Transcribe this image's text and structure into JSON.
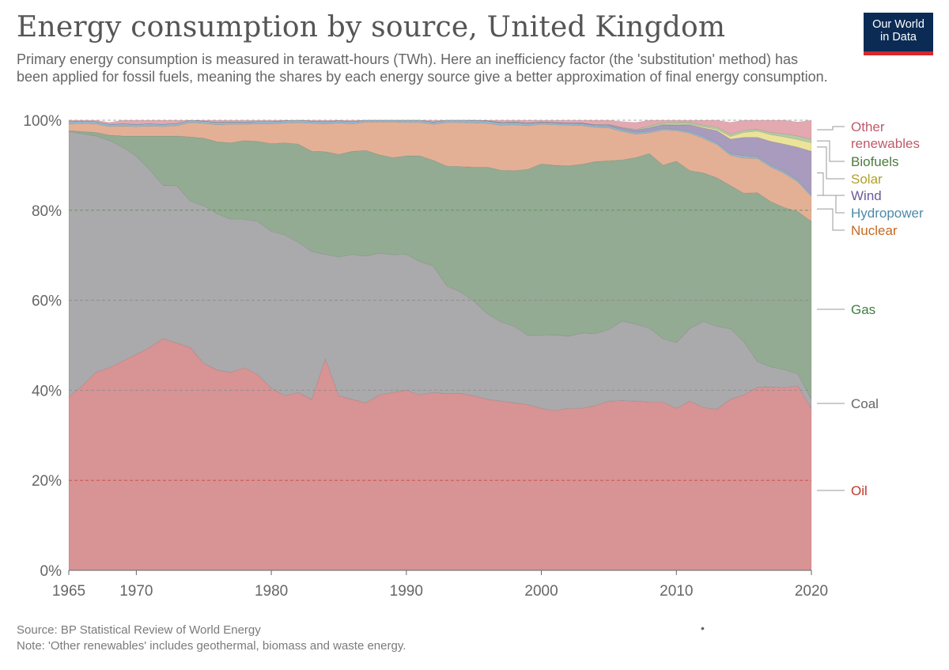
{
  "title": "Energy consumption by source, United Kingdom",
  "subtitle": "Primary energy consumption is measured in terawatt-hours (TWh). Here an inefficiency factor (the 'substitution' method) has been applied for fossil fuels, meaning the shares by each energy source give a better approximation of final energy consumption.",
  "logo": {
    "line1": "Our World",
    "line2": "in Data"
  },
  "footer": {
    "source": "Source: BP Statistical Review of World Energy",
    "note": "Note: 'Other renewables' includes geothermal, biomass and waste energy.",
    "dot": "•"
  },
  "chart_data": {
    "type": "area",
    "stacked": true,
    "title": "Energy consumption by source, United Kingdom",
    "xlabel": "",
    "ylabel": "",
    "xlim": [
      1965,
      2020
    ],
    "ylim": [
      0,
      100
    ],
    "y_ticks": [
      "0%",
      "20%",
      "40%",
      "60%",
      "80%",
      "100%"
    ],
    "x_ticks": [
      "1965",
      "1970",
      "1980",
      "1990",
      "2000",
      "2010",
      "2020"
    ],
    "grid": "horizontal dashed",
    "legend_placement": "right",
    "x": [
      1965,
      1966,
      1967,
      1968,
      1969,
      1970,
      1971,
      1972,
      1973,
      1974,
      1975,
      1976,
      1977,
      1978,
      1979,
      1980,
      1981,
      1982,
      1983,
      1984,
      1985,
      1986,
      1987,
      1988,
      1989,
      1990,
      1991,
      1992,
      1993,
      1994,
      1995,
      1996,
      1997,
      1998,
      1999,
      2000,
      2001,
      2002,
      2003,
      2004,
      2005,
      2006,
      2007,
      2008,
      2009,
      2010,
      2011,
      2012,
      2013,
      2014,
      2015,
      2016,
      2017,
      2018,
      2019,
      2020
    ],
    "series": [
      {
        "name": "Oil",
        "color": "#d89394",
        "label_color": "#c0392b",
        "values": [
          38.5,
          41,
          44,
          45,
          46.5,
          48,
          49.5,
          51.5,
          50.5,
          49.5,
          46,
          44.5,
          44,
          45,
          43.5,
          40.5,
          38.8,
          39.5,
          38,
          47,
          38.8,
          38,
          37.2,
          39,
          39.5,
          40,
          39,
          39.5,
          39.3,
          39.3,
          38.8,
          38,
          37.6,
          37.2,
          36.8,
          36,
          35.5,
          36,
          36,
          36.6,
          37.6,
          37.7,
          37.6,
          37.4,
          37.4,
          36,
          37.6,
          36.2,
          35.8,
          38,
          39,
          40.7,
          40.8,
          40.6,
          41,
          36
        ]
      },
      {
        "name": "Coal",
        "color": "#aaaaac",
        "label_color": "#666666",
        "values": [
          59,
          56,
          52.5,
          50.5,
          47.5,
          44,
          39.5,
          34,
          35,
          32.5,
          35,
          34.7,
          34,
          33,
          34,
          34.8,
          35.7,
          33.4,
          32.8,
          23.2,
          30.8,
          32.2,
          32.6,
          31.5,
          30.6,
          30.2,
          29.6,
          28.1,
          23.9,
          22.6,
          21,
          19,
          17.6,
          17,
          15.4,
          16.2,
          16.8,
          16,
          16.7,
          16,
          15.9,
          17.7,
          17.1,
          16.4,
          14.1,
          14.6,
          16.1,
          19.1,
          18.4,
          15.7,
          11.8,
          5.7,
          4.4,
          4,
          2.6,
          2
        ]
      },
      {
        "name": "Gas",
        "color": "#93ab92",
        "label_color": "#3f7d3f",
        "values": [
          0.2,
          0.5,
          0.8,
          1.2,
          2.5,
          4.5,
          7.5,
          11,
          11,
          14.3,
          15,
          16,
          17,
          17.5,
          17.8,
          19.5,
          20.5,
          21.8,
          22.3,
          22.8,
          22.8,
          22.9,
          23.5,
          21.8,
          21.6,
          21.9,
          23.5,
          23.5,
          26.6,
          27.8,
          29.8,
          32.6,
          33.7,
          34.6,
          36.9,
          38.1,
          37.7,
          37.9,
          37.5,
          38.2,
          37.5,
          35.8,
          37,
          38.8,
          38.5,
          40.3,
          35.1,
          33,
          33,
          31.8,
          33,
          37.5,
          36.7,
          36,
          36.1,
          39.5
        ]
      },
      {
        "name": "Nuclear",
        "color": "#e3b096",
        "label_color": "#c46a24",
        "values": [
          1.5,
          1.8,
          1.9,
          1.9,
          2.2,
          2.1,
          2.2,
          2.1,
          2.3,
          3.2,
          3.3,
          3.8,
          4.1,
          3.6,
          3.9,
          4.4,
          4.4,
          4.8,
          6.2,
          6.2,
          7,
          6.1,
          6.3,
          7.3,
          7.9,
          7.4,
          7.4,
          8,
          9.7,
          9.8,
          9.8,
          9.7,
          10,
          10.2,
          9.7,
          8.8,
          9,
          9,
          8.6,
          7.6,
          7.3,
          6.3,
          5.2,
          4.6,
          7.8,
          6.8,
          8.3,
          7.7,
          7.4,
          6.7,
          7.8,
          7.6,
          7.7,
          7.6,
          6.6,
          5.6
        ]
      },
      {
        "name": "Hydropower",
        "color": "#94b7cd",
        "label_color": "#4d8aa8",
        "values": [
          0.5,
          0.5,
          0.5,
          0.5,
          0.5,
          0.5,
          0.5,
          0.5,
          0.5,
          0.5,
          0.5,
          0.5,
          0.5,
          0.5,
          0.5,
          0.5,
          0.5,
          0.5,
          0.5,
          0.5,
          0.5,
          0.5,
          0.5,
          0.5,
          0.5,
          0.5,
          0.5,
          0.5,
          0.5,
          0.5,
          0.5,
          0.5,
          0.5,
          0.5,
          0.5,
          0.4,
          0.4,
          0.4,
          0.4,
          0.4,
          0.4,
          0.4,
          0.4,
          0.4,
          0.4,
          0.3,
          0.4,
          0.4,
          0.4,
          0.4,
          0.5,
          0.4,
          0.4,
          0.4,
          0.4,
          0.4
        ]
      },
      {
        "name": "Wind",
        "color": "#a89bbd",
        "label_color": "#6b5a99",
        "values": [
          0,
          0,
          0,
          0,
          0,
          0,
          0,
          0,
          0,
          0,
          0,
          0,
          0,
          0,
          0,
          0,
          0,
          0,
          0,
          0,
          0,
          0,
          0,
          0,
          0,
          0,
          0,
          0,
          0,
          0,
          0.1,
          0.1,
          0.1,
          0.1,
          0.1,
          0.1,
          0.1,
          0.1,
          0.2,
          0.2,
          0.3,
          0.4,
          0.5,
          0.7,
          0.8,
          0.9,
          1.5,
          1.9,
          2.7,
          3.2,
          4.1,
          4.3,
          5.3,
          6.1,
          7.3,
          9.6
        ]
      },
      {
        "name": "Solar",
        "color": "#ece39a",
        "label_color": "#b0a02a",
        "values": [
          0,
          0,
          0,
          0,
          0,
          0,
          0,
          0,
          0,
          0,
          0,
          0,
          0,
          0,
          0,
          0,
          0,
          0,
          0,
          0,
          0,
          0,
          0,
          0,
          0,
          0,
          0,
          0,
          0,
          0,
          0,
          0,
          0,
          0,
          0,
          0,
          0,
          0,
          0,
          0,
          0,
          0,
          0,
          0,
          0,
          0,
          0.1,
          0.2,
          0.3,
          0.6,
          1.1,
          1.4,
          1.5,
          1.6,
          1.7,
          1.9
        ]
      },
      {
        "name": "Biofuels",
        "color": "#b5c9a5",
        "label_color": "#4c7a3c",
        "values": [
          0,
          0,
          0,
          0,
          0,
          0,
          0,
          0,
          0,
          0,
          0,
          0,
          0,
          0,
          0,
          0,
          0,
          0,
          0,
          0,
          0,
          0,
          0,
          0,
          0,
          0,
          0,
          0,
          0,
          0,
          0,
          0,
          0,
          0,
          0,
          0,
          0,
          0,
          0,
          0,
          0.1,
          0.1,
          0.2,
          0.4,
          0.5,
          0.6,
          0.5,
          0.4,
          0.5,
          0.5,
          0.5,
          0.4,
          0.5,
          0.7,
          0.8,
          0.8
        ]
      },
      {
        "name": "Other renewables",
        "label_lines": [
          "Other",
          "renewables"
        ],
        "color": "#e4a9b0",
        "label_color": "#c05a6a",
        "values": [
          0.3,
          0.2,
          0.3,
          0.4,
          0.8,
          0.9,
          0.8,
          0.9,
          0.7,
          0.5,
          0.2,
          0.5,
          0.4,
          0.4,
          0.3,
          0.3,
          0.1,
          0.4,
          0.2,
          0.3,
          0.1,
          0.3,
          0.1,
          0.4,
          0.4,
          0.5,
          0.5,
          0.9,
          0.5,
          0.3,
          0.4,
          0.4,
          0.5,
          0.7,
          0.8,
          0.9,
          1,
          1.1,
          1,
          1,
          1.1,
          1.3,
          1.5,
          1.6,
          1.9,
          1.9,
          2.1,
          2.1,
          2.5,
          2.6,
          2.4,
          2.5,
          3,
          3.1,
          3.1,
          4.2
        ]
      }
    ]
  }
}
